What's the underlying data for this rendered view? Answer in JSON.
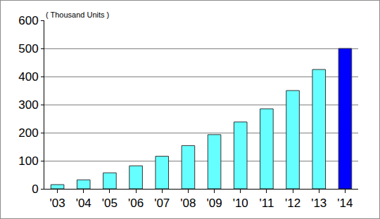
{
  "chart_data": {
    "type": "bar",
    "ylabel": "( Thousand Units )",
    "categories": [
      "'03",
      "'04",
      "'05",
      "'06",
      "'07",
      "'08",
      "'09",
      "'10",
      "'11",
      "'12",
      "'13",
      "'14"
    ],
    "values": [
      15,
      32,
      57,
      82,
      116,
      154,
      193,
      238,
      285,
      350,
      425,
      500
    ],
    "colors": [
      "#66ffff",
      "#66ffff",
      "#66ffff",
      "#66ffff",
      "#66ffff",
      "#66ffff",
      "#66ffff",
      "#66ffff",
      "#66ffff",
      "#66ffff",
      "#66ffff",
      "#0000ff"
    ],
    "ylim": [
      0,
      600
    ],
    "yticks": [
      0,
      100,
      200,
      300,
      400,
      500,
      600
    ],
    "grid": true
  }
}
